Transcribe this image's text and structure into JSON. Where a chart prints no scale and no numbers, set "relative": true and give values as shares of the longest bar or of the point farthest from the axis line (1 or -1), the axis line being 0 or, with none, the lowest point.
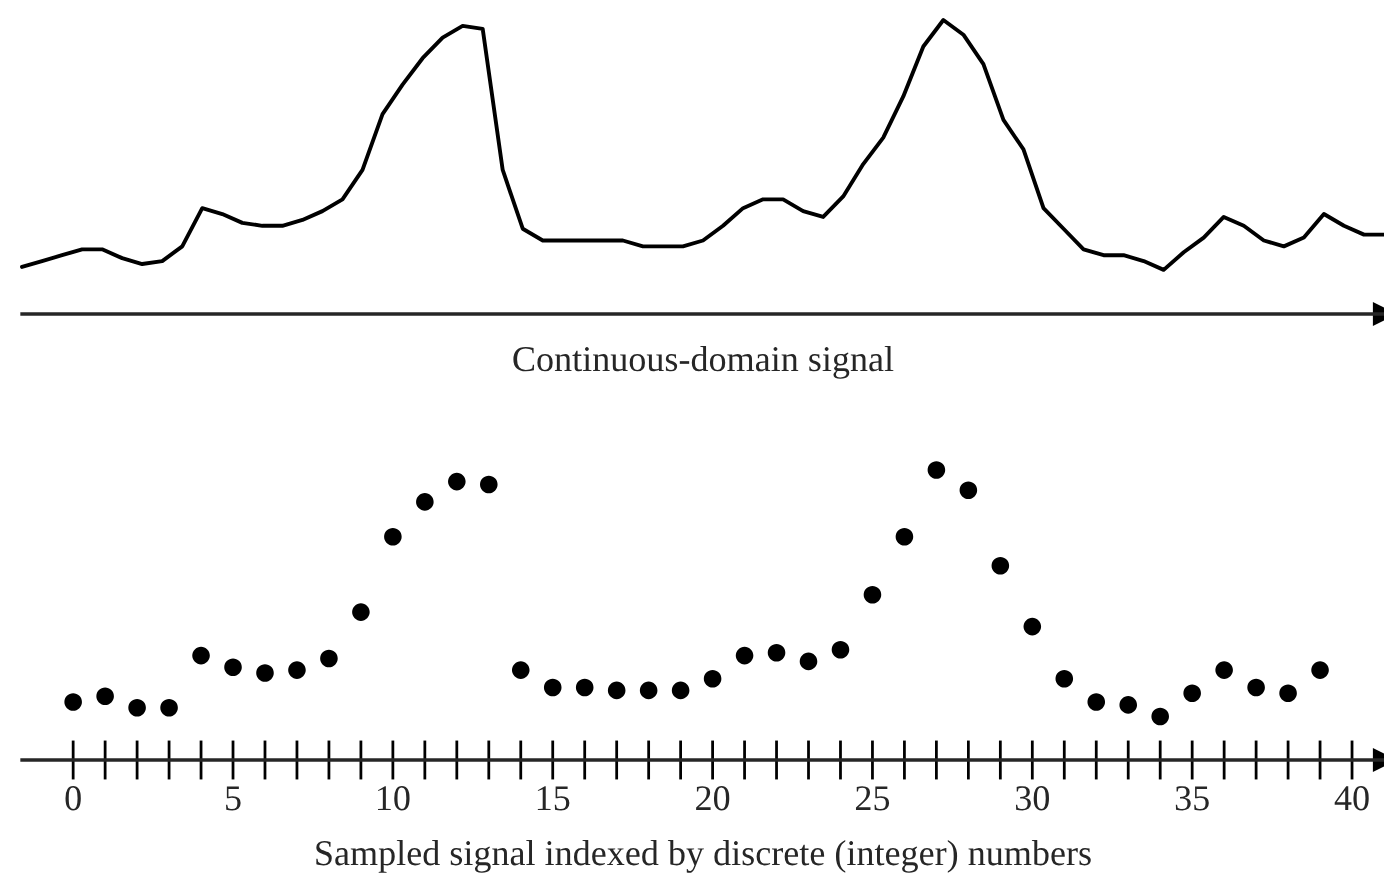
{
  "chart_data": [
    {
      "type": "line",
      "xlabel": "Continuous-domain signal",
      "relative": true,
      "tick_labels": false,
      "marker": "none",
      "line_style": "solid",
      "grid": false,
      "legend": false,
      "categories": [
        null,
        null,
        null,
        null,
        null,
        null,
        null,
        null,
        null,
        null,
        null,
        null,
        null,
        null,
        null,
        null,
        null,
        null,
        null,
        null,
        null,
        null,
        null,
        null,
        null,
        null,
        null,
        null,
        null,
        null,
        null,
        null,
        null,
        null,
        null,
        null,
        null,
        null,
        null,
        null,
        null,
        null,
        null,
        null,
        null,
        null,
        null,
        null,
        null,
        null,
        null,
        null,
        null,
        null,
        null,
        null,
        null,
        null,
        null,
        null,
        null,
        null,
        null,
        null,
        null,
        null,
        null,
        null,
        null
      ],
      "series": [
        {
          "color": "#000000",
          "values": [
            0.16,
            0.18,
            0.2,
            0.22,
            0.22,
            0.19,
            0.17,
            0.18,
            0.23,
            0.36,
            0.34,
            0.31,
            0.3,
            0.3,
            0.32,
            0.35,
            0.39,
            0.49,
            0.68,
            0.78,
            0.87,
            0.94,
            0.98,
            0.97,
            0.49,
            0.29,
            0.25,
            0.25,
            0.25,
            0.25,
            0.25,
            0.23,
            0.23,
            0.23,
            0.25,
            0.3,
            0.36,
            0.39,
            0.39,
            0.35,
            0.33,
            0.4,
            0.51,
            0.6,
            0.74,
            0.91,
            1.0,
            0.95,
            0.85,
            0.66,
            0.56,
            0.36,
            0.29,
            0.22,
            0.2,
            0.2,
            0.18,
            0.15,
            0.21,
            0.26,
            0.33,
            0.3,
            0.25,
            0.23,
            0.26,
            0.34,
            0.3,
            0.27,
            0.27
          ]
        }
      ]
    },
    {
      "type": "scatter",
      "xlabel": "Sampled signal indexed by discrete (integer) numbers",
      "relative": true,
      "tick_labels": "x",
      "marker": "circle",
      "grid": false,
      "legend": false,
      "xlim": [
        -1.6,
        41
      ],
      "xticks": [
        0,
        {
          "value": 1,
          "label": null
        },
        {
          "value": 2,
          "label": null
        },
        {
          "value": 3,
          "label": null
        },
        {
          "value": 4,
          "label": null
        },
        5,
        {
          "value": 6,
          "label": null
        },
        {
          "value": 7,
          "label": null
        },
        {
          "value": 8,
          "label": null
        },
        {
          "value": 9,
          "label": null
        },
        10,
        {
          "value": 11,
          "label": null
        },
        {
          "value": 12,
          "label": null
        },
        {
          "value": 13,
          "label": null
        },
        {
          "value": 14,
          "label": null
        },
        15,
        {
          "value": 16,
          "label": null
        },
        {
          "value": 17,
          "label": null
        },
        {
          "value": 18,
          "label": null
        },
        {
          "value": 19,
          "label": null
        },
        20,
        {
          "value": 21,
          "label": null
        },
        {
          "value": 22,
          "label": null
        },
        {
          "value": 23,
          "label": null
        },
        {
          "value": 24,
          "label": null
        },
        25,
        {
          "value": 26,
          "label": null
        },
        {
          "value": 27,
          "label": null
        },
        {
          "value": 28,
          "label": null
        },
        {
          "value": 29,
          "label": null
        },
        30,
        {
          "value": 31,
          "label": null
        },
        {
          "value": 32,
          "label": null
        },
        {
          "value": 33,
          "label": null
        },
        {
          "value": 34,
          "label": null
        },
        35,
        {
          "value": 36,
          "label": null
        },
        {
          "value": 37,
          "label": null
        },
        {
          "value": 38,
          "label": null
        },
        {
          "value": 39,
          "label": null
        },
        40
      ],
      "x": [
        0,
        1,
        2,
        3,
        4,
        5,
        6,
        7,
        8,
        9,
        10,
        11,
        12,
        13,
        14,
        15,
        16,
        17,
        18,
        19,
        20,
        21,
        22,
        23,
        24,
        25,
        26,
        27,
        28,
        29,
        30,
        31,
        32,
        33,
        34,
        35,
        36,
        37,
        38,
        39
      ],
      "series": [
        {
          "color": "#000000",
          "values": [
            0.2,
            0.22,
            0.18,
            0.18,
            0.36,
            0.32,
            0.3,
            0.31,
            0.35,
            0.51,
            0.77,
            0.89,
            0.96,
            0.95,
            0.31,
            0.25,
            0.25,
            0.24,
            0.24,
            0.24,
            0.28,
            0.36,
            0.37,
            0.34,
            0.38,
            0.57,
            0.77,
            1.0,
            0.93,
            0.67,
            0.46,
            0.28,
            0.2,
            0.19,
            0.15,
            0.23,
            0.31,
            0.25,
            0.23,
            0.31
          ]
        }
      ]
    }
  ]
}
